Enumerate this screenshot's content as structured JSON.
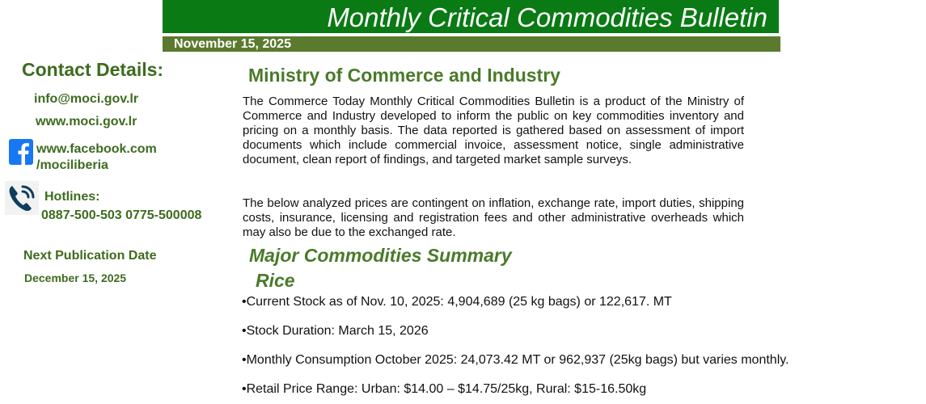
{
  "header": {
    "bulletin_title": "Monthly Critical Commodities Bulletin",
    "date": "November 15, 2025",
    "banner_color": "#0a7a14",
    "dateline_color": "#5a7a2e"
  },
  "sidebar": {
    "contact_heading": "Contact Details:",
    "email": "info@moci.gov.lr",
    "website": "www.moci.gov.lr",
    "facebook_line1": "www.facebook.com",
    "facebook_line2": "/mociliberia",
    "hotlines_label": "Hotlines:",
    "hotlines_numbers": "0887-500-503 0775-500008",
    "next_publication_label": "Next Publication Date",
    "next_publication_date": "December 15, 2025",
    "facebook_icon": "facebook-icon",
    "phone_icon": "phone-icon"
  },
  "main": {
    "ministry_title": "Ministry of Commerce and Industry",
    "paragraph1": "The Commerce Today Monthly Critical Commodities Bulletin is a product of the Ministry of Commerce and Industry developed to inform the public on key commodities inventory and pricing on a monthly basis. The data reported is gathered based on assessment of import documents which include commercial invoice, assessment notice, single administrative document, clean report of findings, and targeted market sample surveys.",
    "paragraph2": "The below analyzed prices are contingent on inflation, exchange rate, import duties, shipping costs, insurance, licensing and registration fees and other administrative overheads which may also be due to the exchanged rate.",
    "summary_title": "Major Commodities Summary",
    "rice_title": "Rice",
    "rice_bullets": [
      "•Current Stock as of Nov. 10, 2025: 4,904,689 (25 kg bags) or 122,617. MT",
      "•Stock Duration: March 15, 2026",
      "•Monthly Consumption October 2025:  24,073.42 MT or 962,937 (25kg bags) but varies monthly.",
      "•Retail Price Range: Urban: $14.00 – $14.75/25kg, Rural: $15-16.50kg"
    ],
    "title_color": "#4a7a2a"
  }
}
